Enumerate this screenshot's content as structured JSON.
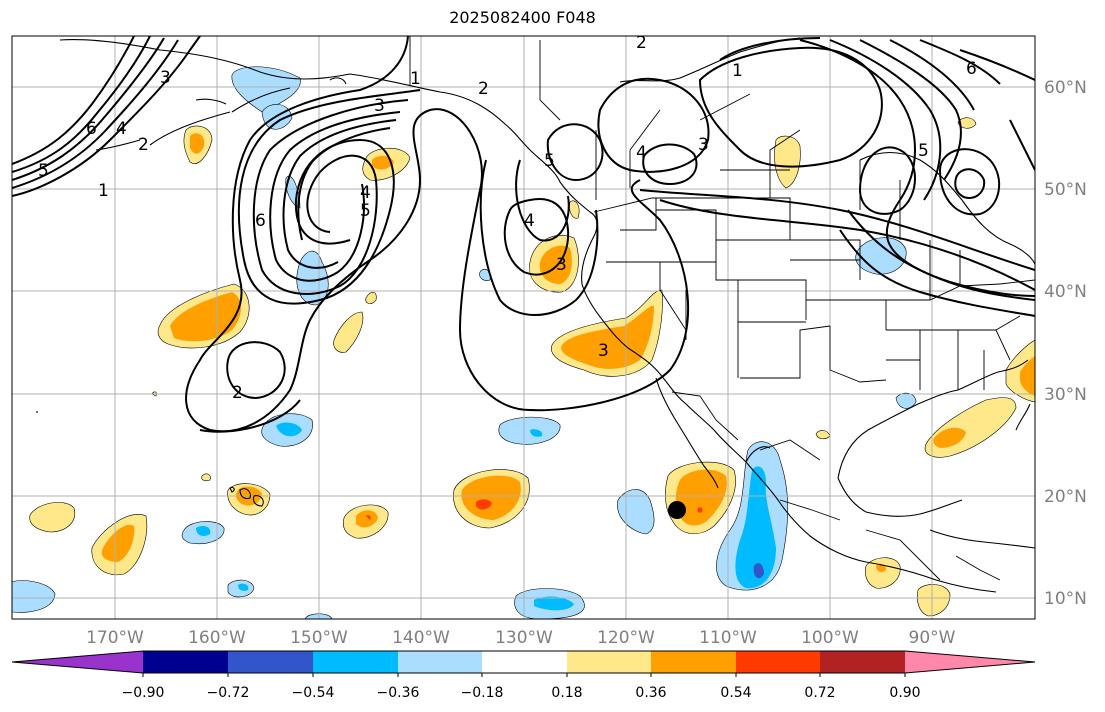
{
  "title": "2025082400 F048",
  "longitude_labels": [
    "170°W",
    "160°W",
    "150°W",
    "140°W",
    "130°W",
    "120°W",
    "110°W",
    "100°W",
    "90°W"
  ],
  "latitude_labels": [
    "60°N",
    "50°N",
    "40°N",
    "30°N",
    "20°N",
    "10°N"
  ],
  "colorbar": {
    "colors": [
      "#9933cc",
      "#000090",
      "#3355cc",
      "#00bbff",
      "#aaddff",
      "#ffffff",
      "#ffe88a",
      "#ffa000",
      "#ff3b00",
      "#b22222",
      "#ff88aa"
    ],
    "labels": [
      "−0.90",
      "−0.72",
      "−0.54",
      "−0.36",
      "−0.18",
      "0.18",
      "0.36",
      "0.54",
      "0.72",
      "0.90"
    ]
  },
  "contour_labels": [
    "1",
    "2",
    "3",
    "4",
    "5",
    "6",
    "1",
    "2",
    "3",
    "4",
    "5",
    "6",
    "2",
    "3",
    "4",
    "5",
    "3",
    "2",
    "1",
    "3",
    "4",
    "5",
    "6"
  ],
  "storm_marker": "storm-center"
}
